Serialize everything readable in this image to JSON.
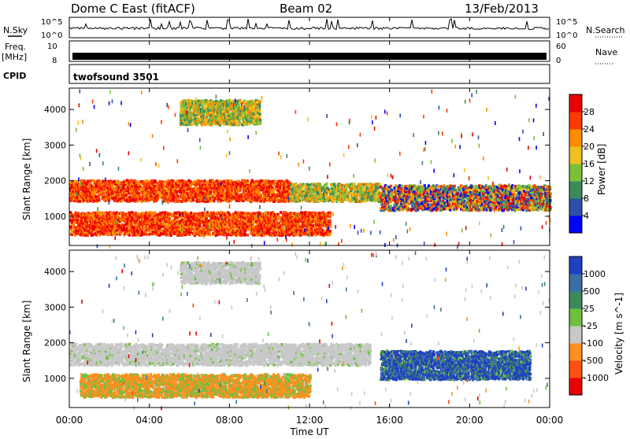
{
  "header": {
    "station": "Dome C East (fitACF)",
    "beam": "Beam 02",
    "date": "13/Feb/2013"
  },
  "top_panels": {
    "nsky_label": "N.Sky",
    "nsky_ticks": [
      "10^5",
      "10^0"
    ],
    "nsearch_label": "N.Search",
    "nsearch_ticks": [
      "10^5",
      "10^0"
    ],
    "freq_label": "Freq.",
    "freq_unit": "[MHz]",
    "freq_ticks": [
      "10",
      "8"
    ],
    "nave_label": "Nave",
    "nave_ticks": [
      "60",
      "0"
    ],
    "cpid_label": "CPID",
    "cpid_value": "twofsound 3501"
  },
  "x_axis": {
    "label": "Time UT",
    "ticks": [
      "00:00",
      "04:00",
      "08:00",
      "12:00",
      "16:00",
      "20:00",
      "00:00"
    ]
  },
  "chart_data": [
    {
      "type": "heatmap",
      "panel": "power",
      "xlabel": "Time UT",
      "ylabel": "Slant Range [km]",
      "xlim": [
        0,
        24
      ],
      "ylim": [
        180,
        4600
      ],
      "y_ticks": [
        1000,
        2000,
        3000,
        4000
      ],
      "colorbar": {
        "label": "Power [dB]",
        "ticks": [
          "4",
          "8",
          "12",
          "16",
          "20",
          "24",
          "28"
        ],
        "range": [
          0,
          32
        ],
        "colors": [
          "#0000ff",
          "#2d4fa8",
          "#3c8a5c",
          "#7bbf3a",
          "#f0c020",
          "#ff8c00",
          "#ff3a00",
          "#e80000"
        ]
      },
      "echo_bands": [
        {
          "t0": 0.0,
          "t1": 11.0,
          "r0": 1450,
          "r1": 2050,
          "level": "high"
        },
        {
          "t0": 11.0,
          "t1": 15.5,
          "r0": 1450,
          "r1": 1950,
          "level": "mid"
        },
        {
          "t0": 15.5,
          "t1": 24.0,
          "r0": 1200,
          "r1": 1900,
          "level": "mixed"
        },
        {
          "t0": 0.0,
          "t1": 13.0,
          "r0": 500,
          "r1": 1150,
          "level": "high"
        },
        {
          "t0": 5.5,
          "t1": 9.5,
          "r0": 3600,
          "r1": 4300,
          "level": "mid"
        }
      ]
    },
    {
      "type": "heatmap",
      "panel": "velocity",
      "xlabel": "Time UT",
      "ylabel": "Slant Range [km]",
      "xlim": [
        0,
        24
      ],
      "ylim": [
        180,
        4600
      ],
      "y_ticks": [
        1000,
        2000,
        3000,
        4000
      ],
      "colorbar": {
        "label": "Velocity [m s^-1]",
        "ticks": [
          "1000",
          "500",
          "25",
          "-25",
          "-100",
          "-500",
          "-1000"
        ],
        "colors": [
          "#2040c0",
          "#3c6ea8",
          "#3c8a5c",
          "#70c040",
          "#c8c8c8",
          "#ff9020",
          "#ff5010",
          "#e80000"
        ]
      },
      "echo_bands": [
        {
          "t0": 0.0,
          "t1": 15.0,
          "r0": 1400,
          "r1": 2000,
          "level": "near-zero"
        },
        {
          "t0": 0.5,
          "t1": 12.0,
          "r0": 500,
          "r1": 1150,
          "level": "toward (orange)"
        },
        {
          "t0": 15.5,
          "t1": 23.0,
          "r0": 1000,
          "r1": 1800,
          "level": "away (blue)"
        },
        {
          "t0": 5.5,
          "t1": 9.5,
          "r0": 3700,
          "r1": 4300,
          "level": "near-zero"
        }
      ]
    }
  ]
}
